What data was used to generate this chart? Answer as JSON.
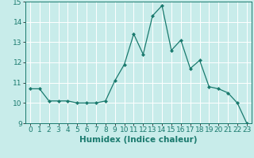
{
  "x": [
    0,
    1,
    2,
    3,
    4,
    5,
    6,
    7,
    8,
    9,
    10,
    11,
    12,
    13,
    14,
    15,
    16,
    17,
    18,
    19,
    20,
    21,
    22,
    23
  ],
  "y": [
    10.7,
    10.7,
    10.1,
    10.1,
    10.1,
    10.0,
    10.0,
    10.0,
    10.1,
    11.1,
    11.9,
    13.4,
    12.4,
    14.3,
    14.8,
    12.6,
    13.1,
    11.7,
    12.1,
    10.8,
    10.7,
    10.5,
    10.0,
    9.0
  ],
  "line_color": "#1a7a6e",
  "marker_color": "#1a7a6e",
  "bg_color": "#c8ecea",
  "grid_color": "#ffffff",
  "xlabel": "Humidex (Indice chaleur)",
  "xlabel_fontsize": 7.5,
  "tick_fontsize": 6.5,
  "ylim": [
    9,
    15
  ],
  "xlim": [
    -0.5,
    23.5
  ],
  "yticks": [
    9,
    10,
    11,
    12,
    13,
    14,
    15
  ],
  "xticks": [
    0,
    1,
    2,
    3,
    4,
    5,
    6,
    7,
    8,
    9,
    10,
    11,
    12,
    13,
    14,
    15,
    16,
    17,
    18,
    19,
    20,
    21,
    22,
    23
  ]
}
